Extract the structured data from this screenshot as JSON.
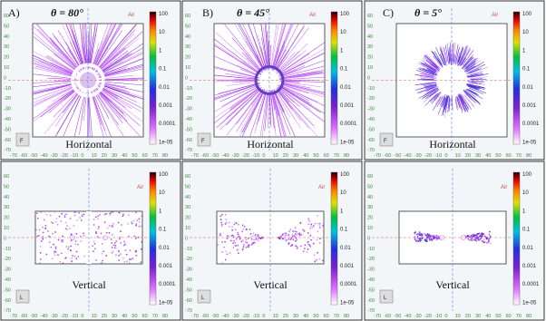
{
  "columns": [
    {
      "label": "A)",
      "angle": "θ = 80°"
    },
    {
      "label": "B)",
      "angle": "θ = 45°"
    },
    {
      "label": "C)",
      "angle": "θ = 5°"
    }
  ],
  "views": [
    "Horizontal",
    "Vertical"
  ],
  "view_icons": [
    "F",
    "L"
  ],
  "air_label": "Air",
  "axis": {
    "yticks": [
      "60",
      "50",
      "40",
      "30",
      "20",
      "10",
      "0",
      "-10",
      "-20",
      "-30",
      "-40",
      "-50",
      "-60",
      "-70"
    ],
    "xticks": [
      "-70",
      "-60",
      "-50",
      "-40",
      "-30",
      "-20",
      "-10",
      "0",
      "10",
      "20",
      "30",
      "40",
      "50",
      "60",
      "70",
      "80"
    ]
  },
  "colorbar": {
    "labels": [
      "100",
      "10",
      "1",
      "0.1",
      "0.01",
      "0.001",
      "0.0001",
      "1e-05"
    ]
  }
}
